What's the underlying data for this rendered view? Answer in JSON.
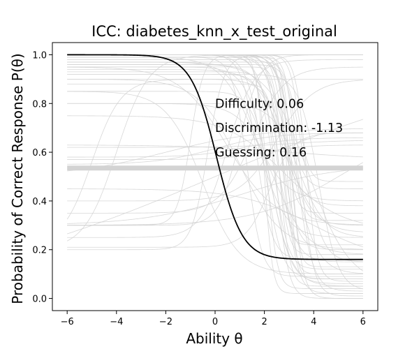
{
  "chart_data": {
    "type": "line",
    "title": "ICC: diabetes_knn_x_test_original",
    "xlabel": "Ability θ",
    "ylabel": "Probability of Correct Response P(θ)",
    "xlim": [
      -6.6,
      6.6
    ],
    "ylim": [
      -0.05,
      1.05
    ],
    "xticks": [
      -6,
      -4,
      -2,
      0,
      2,
      4,
      6
    ],
    "yticks": [
      0.0,
      0.2,
      0.4,
      0.6,
      0.8,
      1.0
    ],
    "xtick_labels": [
      "−6",
      "−4",
      "−2",
      "0",
      "2",
      "4",
      "6"
    ],
    "ytick_labels": [
      "0.0",
      "0.2",
      "0.4",
      "0.6",
      "0.8",
      "1.0"
    ],
    "grid": false,
    "legend": "none",
    "highlight_item": {
      "difficulty": 0.06,
      "discrimination": -1.13,
      "guessing": 0.16,
      "color": "#000000"
    },
    "annotations": [
      {
        "text": "Difficulty: 0.06",
        "x": 0.0,
        "y": 0.8
      },
      {
        "text": "Discrimination: -1.13",
        "x": 0.0,
        "y": 0.7
      },
      {
        "text": "Guessing: 0.16",
        "x": 0.0,
        "y": 0.6
      }
    ],
    "background_items": {
      "color": "#d3d3d3",
      "flat_band_level": 0.535,
      "items": [
        {
          "b": 2.8,
          "a": -2.2,
          "c": 0.02,
          "d": 1.0
        },
        {
          "b": 2.6,
          "a": -2.8,
          "c": 0.05,
          "d": 1.0
        },
        {
          "b": 2.9,
          "a": -3.5,
          "c": 0.1,
          "d": 1.0
        },
        {
          "b": 2.5,
          "a": -1.6,
          "c": 0.15,
          "d": 1.0
        },
        {
          "b": 3.1,
          "a": -2.5,
          "c": 0.0,
          "d": 0.98
        },
        {
          "b": 2.7,
          "a": -1.9,
          "c": 0.2,
          "d": 1.0
        },
        {
          "b": 2.2,
          "a": -1.3,
          "c": 0.05,
          "d": 0.95
        },
        {
          "b": 3.0,
          "a": -4.0,
          "c": 0.08,
          "d": 1.0
        },
        {
          "b": 2.4,
          "a": -2.1,
          "c": 0.12,
          "d": 0.92
        },
        {
          "b": 3.3,
          "a": -1.8,
          "c": 0.03,
          "d": 1.0
        },
        {
          "b": 1.8,
          "a": -1.1,
          "c": 0.25,
          "d": 0.97
        },
        {
          "b": 2.9,
          "a": -1.4,
          "c": 0.3,
          "d": 1.0
        },
        {
          "b": 2.6,
          "a": -3.0,
          "c": 0.18,
          "d": 0.88
        },
        {
          "b": 3.5,
          "a": -2.3,
          "c": 0.01,
          "d": 0.96
        },
        {
          "b": 2.0,
          "a": -1.7,
          "c": 0.08,
          "d": 1.0
        },
        {
          "b": 2.8,
          "a": -2.6,
          "c": 0.35,
          "d": 1.0
        },
        {
          "b": 3.2,
          "a": -1.2,
          "c": 0.1,
          "d": 0.9
        },
        {
          "b": 1.5,
          "a": -0.9,
          "c": 0.4,
          "d": 0.99
        },
        {
          "b": 2.7,
          "a": -3.8,
          "c": 0.22,
          "d": 0.95
        },
        {
          "b": 2.3,
          "a": -1.5,
          "c": 0.06,
          "d": 0.85
        },
        {
          "b": 3.0,
          "a": -2.0,
          "c": 0.45,
          "d": 1.0
        },
        {
          "b": 2.5,
          "a": -2.4,
          "c": 0.0,
          "d": 0.93
        },
        {
          "b": 0.5,
          "a": -0.6,
          "c": 0.3,
          "d": 0.95
        },
        {
          "b": -0.5,
          "a": -0.8,
          "c": 0.1,
          "d": 0.85
        },
        {
          "b": 1.0,
          "a": -0.7,
          "c": 0.2,
          "d": 0.9
        },
        {
          "b": 3.6,
          "a": -1.6,
          "c": 0.15,
          "d": 1.0
        },
        {
          "b": 2.1,
          "a": -2.9,
          "c": 0.04,
          "d": 0.99
        },
        {
          "b": 2.9,
          "a": -1.0,
          "c": 0.27,
          "d": 0.94
        },
        {
          "b": 2.2,
          "a": 1.2,
          "c": 0.21,
          "d": 0.68
        },
        {
          "b": 1.0,
          "a": 1.4,
          "c": 0.3,
          "d": 1.0
        },
        {
          "b": -0.3,
          "a": 1.8,
          "c": 0.2,
          "d": 1.0
        },
        {
          "b": 1.5,
          "a": 0.9,
          "c": 0.35,
          "d": 0.95
        },
        {
          "b": -1.0,
          "a": 2.2,
          "c": 0.3,
          "d": 1.0
        },
        {
          "b": 0.5,
          "a": 1.1,
          "c": 0.25,
          "d": 0.98
        },
        {
          "b": 2.5,
          "a": 0.8,
          "c": 0.4,
          "d": 0.9
        },
        {
          "b": 0.0,
          "a": 0.5,
          "c": 0.55,
          "d": 0.68
        },
        {
          "b": 1.2,
          "a": 0.6,
          "c": 0.58,
          "d": 0.66
        },
        {
          "b": 3.0,
          "a": 0.5,
          "c": 0.62,
          "d": 0.65
        },
        {
          "b": 2.0,
          "a": 0.7,
          "c": 0.57,
          "d": 0.63
        },
        {
          "b": -2.0,
          "a": 0.3,
          "c": 0.5,
          "d": 0.7
        },
        {
          "b": 3.0,
          "a": -0.3,
          "c": 0.57,
          "d": 0.63
        },
        {
          "b": 0.0,
          "a": 0.1,
          "c": 0.0,
          "d": 1.0
        },
        {
          "b": 4.0,
          "a": -0.4,
          "c": 0.15,
          "d": 0.45
        },
        {
          "b": 1.0,
          "a": 0.3,
          "c": 0.3,
          "d": 0.55
        },
        {
          "b": 5.0,
          "a": 0.35,
          "c": 0.3,
          "d": 0.7
        },
        {
          "b": 2.8,
          "a": -0.5,
          "c": 0.28,
          "d": 0.75
        },
        {
          "b": 3.4,
          "a": -1.1,
          "c": 0.25,
          "d": 0.8
        },
        {
          "b": -4.0,
          "a": 0.9,
          "c": 0.2,
          "d": 1.0
        },
        {
          "b": 3.8,
          "a": -0.7,
          "c": 0.05,
          "d": 0.97
        },
        {
          "b": 3.2,
          "a": -3.3,
          "c": 0.32,
          "d": 0.99
        },
        {
          "b": 2.6,
          "a": -1.3,
          "c": 0.38,
          "d": 0.96
        },
        {
          "b": 3.7,
          "a": -2.7,
          "c": 0.07,
          "d": 1.0
        },
        {
          "b": 1.7,
          "a": -1.9,
          "c": 0.16,
          "d": 1.0
        },
        {
          "b": 3.1,
          "a": -3.9,
          "c": 0.13,
          "d": 0.97
        },
        {
          "b": 4.2,
          "a": -1.5,
          "c": 0.03,
          "d": 0.92
        },
        {
          "b": 2.4,
          "a": -0.9,
          "c": 0.18,
          "d": 0.8
        },
        {
          "b": -5.0,
          "a": 1.0,
          "c": 0.22,
          "d": 0.9
        },
        {
          "b": 1.3,
          "a": -2.0,
          "c": 0.09,
          "d": 0.99
        },
        {
          "b": 2.0,
          "a": -3.6,
          "c": 0.02,
          "d": 1.0
        },
        {
          "b": 3.4,
          "a": -2.9,
          "c": 0.48,
          "d": 1.0
        }
      ]
    }
  }
}
